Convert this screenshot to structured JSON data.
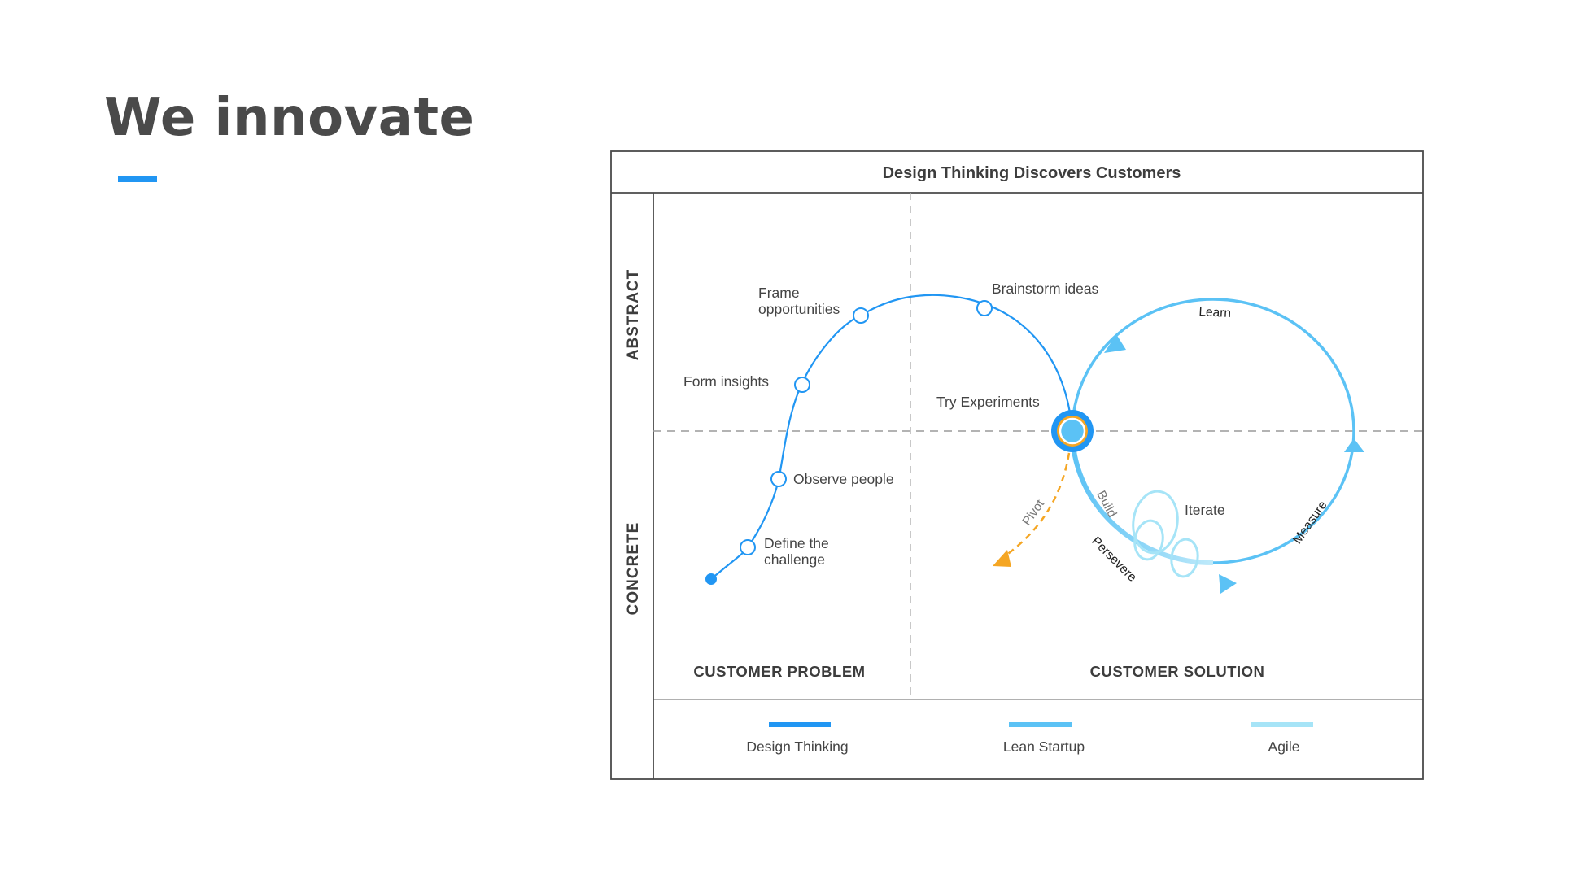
{
  "page": {
    "title": "We innovate"
  },
  "diagram": {
    "header": "Design Thinking Discovers Customers",
    "axis_top": "ABSTRACT",
    "axis_bottom": "CONCRETE",
    "quadrant_left": "CUSTOMER PROBLEM",
    "quadrant_right": "CUSTOMER SOLUTION",
    "design_thinking_steps": {
      "define_line1": "Define the",
      "define_line2": "challenge",
      "observe": "Observe people",
      "insights": "Form insights",
      "frame_line1": "Frame",
      "frame_line2": "opportunities",
      "brainstorm": "Brainstorm ideas",
      "experiments": "Try Experiments"
    },
    "lean_loop": {
      "learn": "Learn",
      "measure": "Measure",
      "build": "Build",
      "persevere": "Persevere",
      "pivot": "Pivot",
      "iterate": "Iterate"
    },
    "legend": [
      {
        "label": "Design Thinking",
        "color": "#2196f3"
      },
      {
        "label": "Lean Startup",
        "color": "#5bc2f5"
      },
      {
        "label": "Agile",
        "color": "#a6e4f7"
      }
    ],
    "colors": {
      "design_thinking": "#2196f3",
      "lean_startup": "#5bc2f5",
      "agile": "#a6e4f7",
      "pivot": "#f5a623",
      "frame": "#4a4a4a"
    }
  }
}
